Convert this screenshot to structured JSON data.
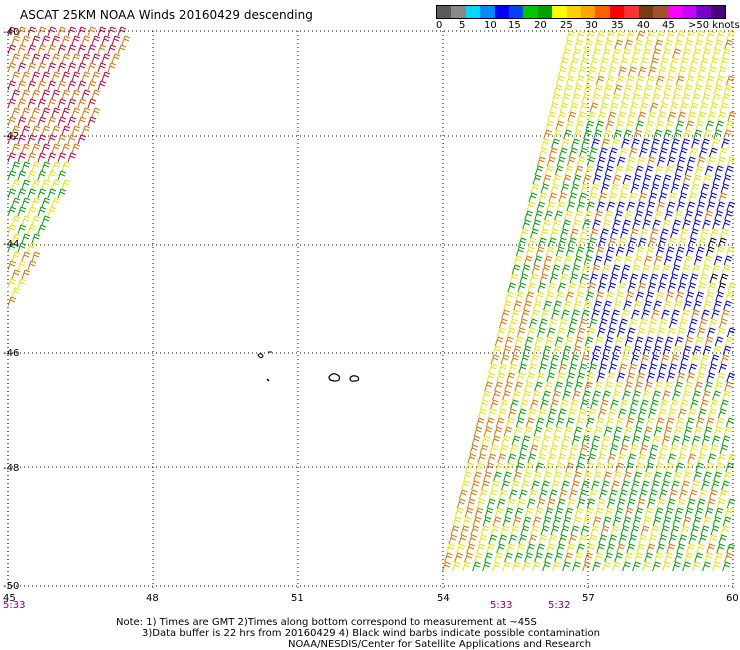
{
  "title": "ASCAT 25KM NOAA Winds 20160429 descending",
  "legend": {
    "labels": [
      "0",
      "5",
      "10",
      "15",
      "20",
      "25",
      "30",
      "35",
      "40",
      "45",
      ">50 knots"
    ],
    "colors": [
      "#5a5a5a",
      "#00d8ff",
      "#008cff",
      "#0000ff",
      "#00c800",
      "#ffff00",
      "#ffa500",
      "#ff0000",
      "#ff0000",
      "#783c14",
      "#c800ff",
      "#7800c8"
    ]
  },
  "axes": {
    "x_ticks": [
      "45",
      "48",
      "51",
      "54",
      "57",
      "60"
    ],
    "y_ticks": [
      "-40",
      "-42",
      "-44",
      "-46",
      "-48",
      "-50"
    ]
  },
  "times": [
    "5:33",
    "5:33",
    "5:32"
  ],
  "notes": [
    "Note: 1) Times are GMT 2)Times along bottom correspond to measurement at ~45S",
    "3)Data buffer is 22 hrs from 20160429 4) Black wind barbs indicate possible contamination",
    "NOAA/NESDIS/Center for Satellite Applications and Research"
  ],
  "colors": {
    "barb_green": "#00a000",
    "barb_yellow": "#e6e600",
    "barb_orange": "#e07000",
    "barb_red": "#cc0033",
    "barb_blue": "#0000dd",
    "barb_black": "#000000",
    "grid": "#000000",
    "time_text": "#800080"
  }
}
